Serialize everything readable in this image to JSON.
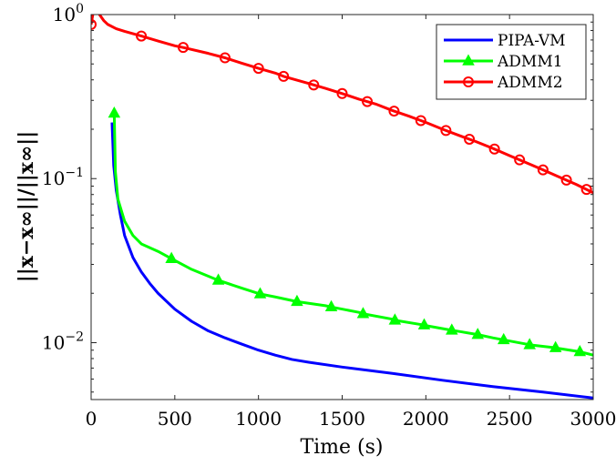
{
  "chart_data": {
    "type": "line",
    "title": "",
    "xlabel": "Time (s)",
    "ylabel": "||x−x∞||/||x∞||",
    "yscale": "log",
    "xlim": [
      0,
      3000
    ],
    "ylim": [
      0.0045,
      1
    ],
    "x_ticks": [
      0,
      500,
      1000,
      1500,
      2000,
      2500,
      3000
    ],
    "x_tick_labels": [
      "0",
      "500",
      "1000",
      "1500",
      "2000",
      "2500",
      "3000"
    ],
    "y_ticks": [
      {
        "value": 1,
        "base": "10",
        "exp": "0"
      },
      {
        "value": 0.1,
        "base": "10",
        "exp": "−1"
      },
      {
        "value": 0.01,
        "base": "10",
        "exp": "−2"
      }
    ],
    "grid": false,
    "legend_position": "top-right",
    "series": [
      {
        "name": "PIPA-VM",
        "color": "#0000ff",
        "marker": "none",
        "x": [
          125,
          135,
          150,
          175,
          200,
          250,
          300,
          350,
          400,
          500,
          600,
          700,
          800,
          900,
          1000,
          1100,
          1200,
          1300,
          1500,
          1800,
          2100,
          2400,
          2700,
          3000
        ],
        "y": [
          0.22,
          0.12,
          0.085,
          0.06,
          0.045,
          0.033,
          0.027,
          0.023,
          0.02,
          0.016,
          0.0135,
          0.0118,
          0.0107,
          0.0098,
          0.009,
          0.0084,
          0.0079,
          0.0076,
          0.0071,
          0.0065,
          0.0059,
          0.0054,
          0.005,
          0.0046
        ]
      },
      {
        "name": "ADMM1",
        "color": "#00ff00",
        "marker": "triangle",
        "x": [
          138,
          145,
          160,
          200,
          250,
          300,
          400,
          480,
          600,
          760,
          900,
          1010,
          1100,
          1230,
          1400,
          1435,
          1600,
          1625,
          1800,
          1815,
          1990,
          2000,
          2155,
          2200,
          2310,
          2400,
          2465,
          2600,
          2620,
          2775,
          2800,
          2920,
          3000
        ],
        "y": [
          0.25,
          0.11,
          0.075,
          0.055,
          0.045,
          0.04,
          0.036,
          0.0325,
          0.028,
          0.024,
          0.0215,
          0.0198,
          0.019,
          0.0178,
          0.0168,
          0.0165,
          0.0153,
          0.015,
          0.0139,
          0.0137,
          0.0128,
          0.0127,
          0.0119,
          0.0117,
          0.0112,
          0.0107,
          0.0104,
          0.0098,
          0.0097,
          0.0093,
          0.0092,
          0.0088,
          0.0084
        ]
      },
      {
        "name": "ADMM2",
        "color": "#ff0000",
        "marker": "circle",
        "x": [
          0,
          10,
          25,
          50,
          75,
          100,
          150,
          200,
          300,
          400,
          500,
          550,
          700,
          800,
          900,
          1000,
          1100,
          1150,
          1300,
          1400,
          1500,
          1600,
          1700,
          1800,
          1900,
          2000,
          2100,
          2200,
          2300,
          2400,
          2500,
          2600,
          2700,
          2800,
          2900,
          3000
        ],
        "y": [
          0.87,
          1.0,
          1.1,
          1.0,
          0.92,
          0.87,
          0.82,
          0.79,
          0.74,
          0.69,
          0.645,
          0.63,
          0.58,
          0.545,
          0.505,
          0.47,
          0.44,
          0.42,
          0.38,
          0.355,
          0.33,
          0.305,
          0.285,
          0.26,
          0.24,
          0.22,
          0.2,
          0.183,
          0.168,
          0.153,
          0.138,
          0.125,
          0.113,
          0.102,
          0.092,
          0.082
        ]
      }
    ],
    "marker_x": {
      "ADMM1": [
        138,
        480,
        760,
        1010,
        1230,
        1435,
        1625,
        1815,
        1990,
        2155,
        2310,
        2465,
        2620,
        2775,
        2920
      ],
      "ADMM2": [
        0,
        300,
        550,
        800,
        1000,
        1150,
        1330,
        1500,
        1650,
        1810,
        1970,
        2120,
        2260,
        2410,
        2560,
        2700,
        2840,
        2960
      ]
    }
  }
}
